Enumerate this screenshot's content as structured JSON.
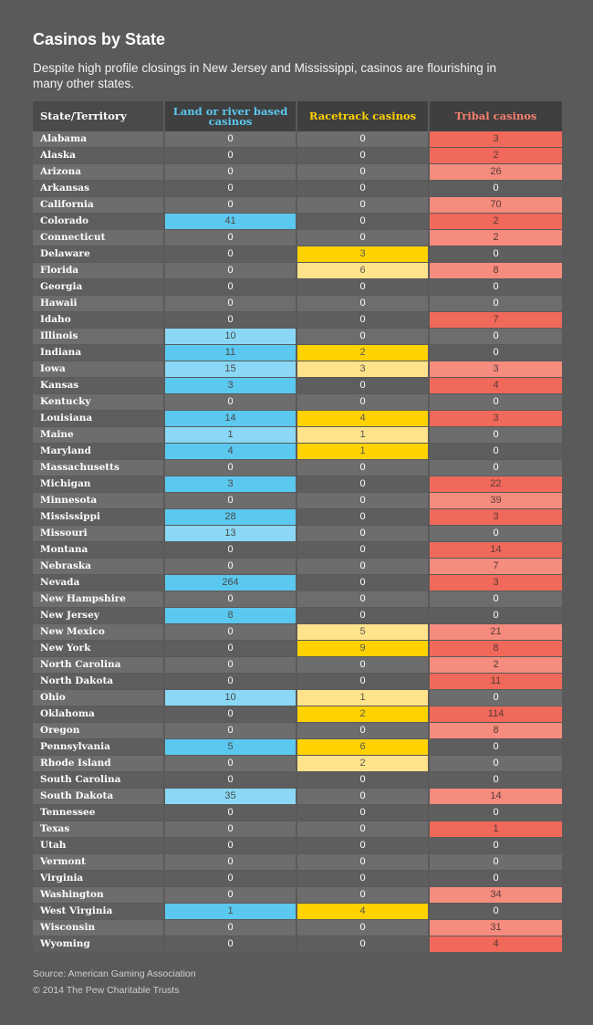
{
  "title": "Casinos by State",
  "subtitle": "Despite high profile closings in New Jersey and Mississippi, casinos are flourishing in many other states.",
  "source": "Source: American Gaming Association",
  "copyright": "© 2014 The Pew Charitable Trusts",
  "colors": {
    "land_header": "#5bc8f0",
    "racetrack_header": "#ffd200",
    "tribal_header": "#f77f6e",
    "land_fill": "#5bc8f0",
    "land_fill_light": "#8ad8f5",
    "racetrack_fill": "#ffd200",
    "racetrack_fill_light": "#ffe38a",
    "tribal_fill": "#f0695a",
    "tribal_fill_light": "#f58c7e"
  },
  "chart_data": {
    "type": "table",
    "columns": [
      "State/Territory",
      "Land or river based casinos",
      "Racetrack casinos",
      "Tribal casinos"
    ],
    "rows": [
      [
        "Alabama",
        0,
        0,
        3
      ],
      [
        "Alaska",
        0,
        0,
        2
      ],
      [
        "Arizona",
        0,
        0,
        26
      ],
      [
        "Arkansas",
        0,
        0,
        0
      ],
      [
        "California",
        0,
        0,
        70
      ],
      [
        "Colorado",
        41,
        0,
        2
      ],
      [
        "Connecticut",
        0,
        0,
        2
      ],
      [
        "Delaware",
        0,
        3,
        0
      ],
      [
        "Florida",
        0,
        6,
        8
      ],
      [
        "Georgia",
        0,
        0,
        0
      ],
      [
        "Hawaii",
        0,
        0,
        0
      ],
      [
        "Idaho",
        0,
        0,
        7
      ],
      [
        "Illinois",
        10,
        0,
        0
      ],
      [
        "Indiana",
        11,
        2,
        0
      ],
      [
        "Iowa",
        15,
        3,
        3
      ],
      [
        "Kansas",
        3,
        0,
        4
      ],
      [
        "Kentucky",
        0,
        0,
        0
      ],
      [
        "Louisiana",
        14,
        4,
        3
      ],
      [
        "Maine",
        1,
        1,
        0
      ],
      [
        "Maryland",
        4,
        1,
        0
      ],
      [
        "Massachusetts",
        0,
        0,
        0
      ],
      [
        "Michigan",
        3,
        0,
        22
      ],
      [
        "Minnesota",
        0,
        0,
        39
      ],
      [
        "Mississippi",
        28,
        0,
        3
      ],
      [
        "Missouri",
        13,
        0,
        0
      ],
      [
        "Montana",
        0,
        0,
        14
      ],
      [
        "Nebraska",
        0,
        0,
        7
      ],
      [
        "Nevada",
        264,
        0,
        3
      ],
      [
        "New Hampshire",
        0,
        0,
        0
      ],
      [
        "New Jersey",
        8,
        0,
        0
      ],
      [
        "New Mexico",
        0,
        5,
        21
      ],
      [
        "New York",
        0,
        9,
        8
      ],
      [
        "North Carolina",
        0,
        0,
        2
      ],
      [
        "North Dakota",
        0,
        0,
        11
      ],
      [
        "Ohio",
        10,
        1,
        0
      ],
      [
        "Oklahoma",
        0,
        2,
        114
      ],
      [
        "Oregon",
        0,
        0,
        8
      ],
      [
        "Pennsylvania",
        5,
        6,
        0
      ],
      [
        "Rhode Island",
        0,
        2,
        0
      ],
      [
        "South Carolina",
        0,
        0,
        0
      ],
      [
        "South Dakota",
        35,
        0,
        14
      ],
      [
        "Tennessee",
        0,
        0,
        0
      ],
      [
        "Texas",
        0,
        0,
        1
      ],
      [
        "Utah",
        0,
        0,
        0
      ],
      [
        "Vermont",
        0,
        0,
        0
      ],
      [
        "Virginia",
        0,
        0,
        0
      ],
      [
        "Washington",
        0,
        0,
        34
      ],
      [
        "West Virginia",
        1,
        4,
        0
      ],
      [
        "Wisconsin",
        0,
        0,
        31
      ],
      [
        "Wyoming",
        0,
        0,
        4
      ]
    ]
  }
}
